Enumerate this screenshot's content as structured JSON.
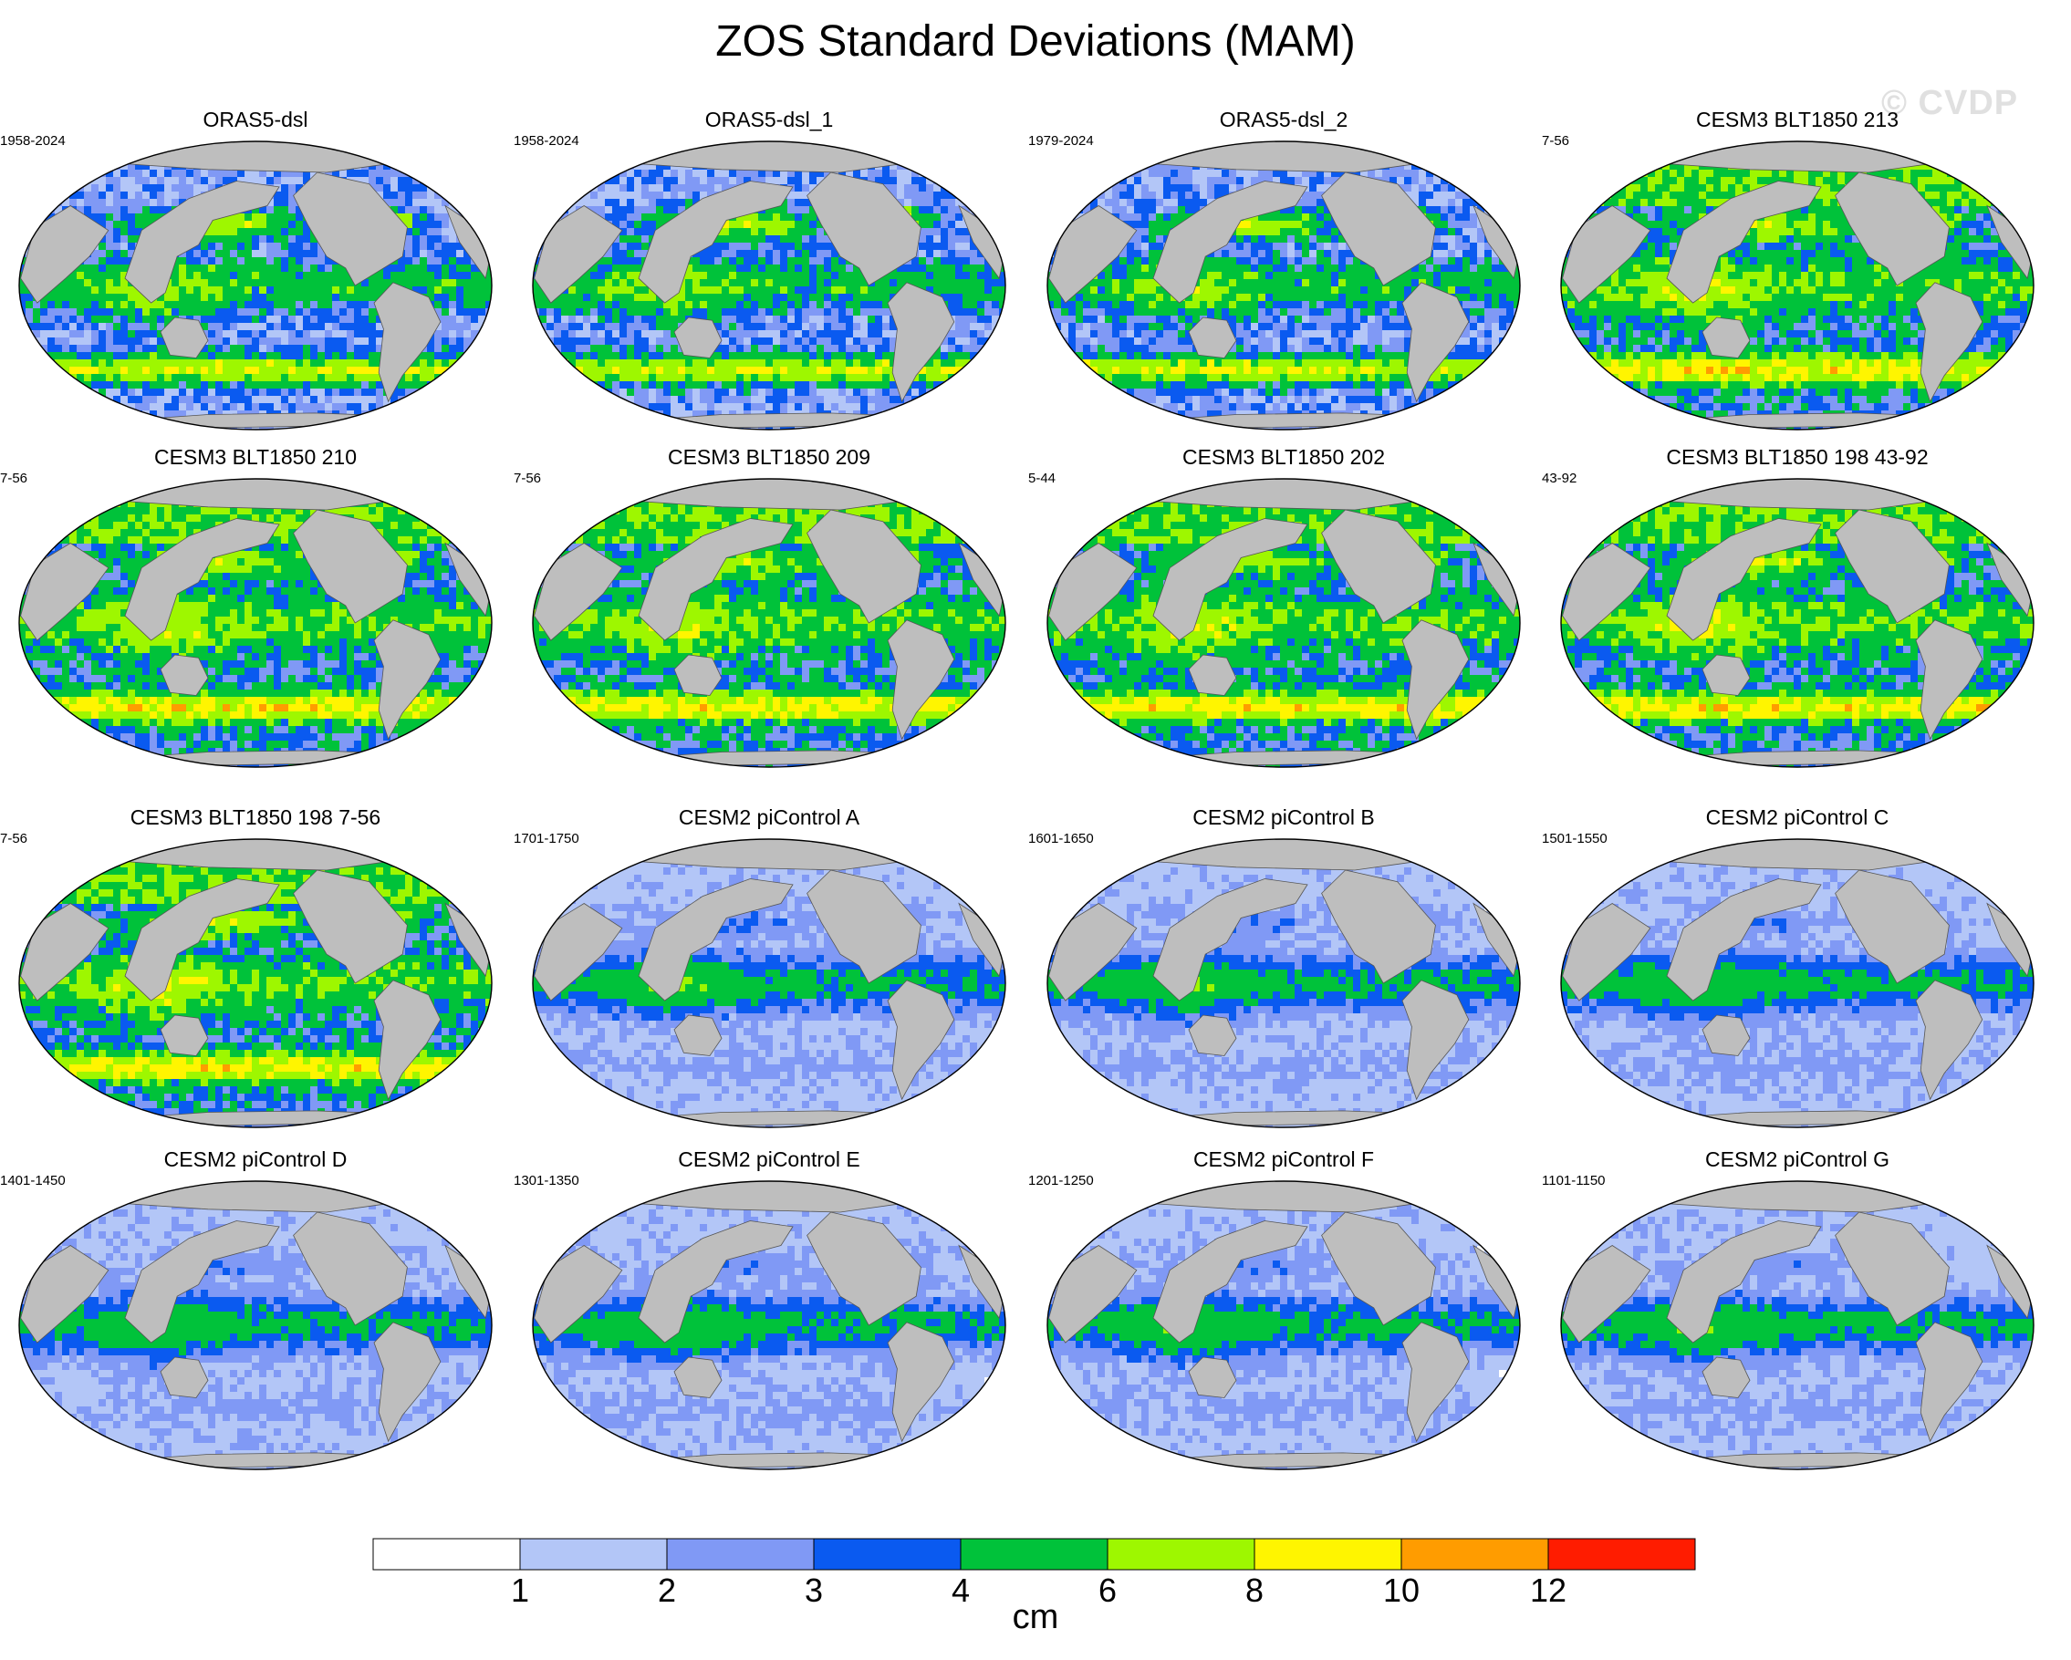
{
  "chart_data": {
    "type": "heatmap",
    "title": "ZOS Standard Deviations (MAM)",
    "watermark": "© CVDP",
    "colorbar": {
      "label": "cm",
      "tick_labels": [
        "1",
        "2",
        "3",
        "4",
        "6",
        "8",
        "10",
        "12"
      ],
      "levels": [
        0,
        1,
        2,
        3,
        4,
        6,
        8,
        10,
        12,
        14
      ],
      "colors": [
        "#ffffff",
        "#b3c6f7",
        "#8099f5",
        "#0a5af0",
        "#00c23a",
        "#9ef700",
        "#fff500",
        "#ff9c00",
        "#ff1c00"
      ]
    },
    "map_colors": {
      "land": "#bebebe",
      "coast": "#555555"
    },
    "panels": [
      {
        "title": "ORAS5-dsl",
        "period": "1958-2024",
        "regime": "obs"
      },
      {
        "title": "ORAS5-dsl_1",
        "period": "1958-2024",
        "regime": "obs"
      },
      {
        "title": "ORAS5-dsl_2",
        "period": "1979-2024",
        "regime": "obs"
      },
      {
        "title": "CESM3 BLT1850 213",
        "period": "7-56",
        "regime": "cesm3"
      },
      {
        "title": "CESM3 BLT1850 210",
        "period": "7-56",
        "regime": "cesm3"
      },
      {
        "title": "CESM3 BLT1850 209",
        "period": "7-56",
        "regime": "cesm3"
      },
      {
        "title": "CESM3 BLT1850 202",
        "period": "5-44",
        "regime": "cesm3"
      },
      {
        "title": "CESM3 BLT1850 198 43-92",
        "period": "43-92",
        "regime": "cesm3"
      },
      {
        "title": "CESM3 BLT1850 198 7-56",
        "period": "7-56",
        "regime": "cesm3"
      },
      {
        "title": "CESM2 piControl A",
        "period": "1701-1750",
        "regime": "cesm2"
      },
      {
        "title": "CESM2 piControl B",
        "period": "1601-1650",
        "regime": "cesm2"
      },
      {
        "title": "CESM2 piControl C",
        "period": "1501-1550",
        "regime": "cesm2"
      },
      {
        "title": "CESM2 piControl D",
        "period": "1401-1450",
        "regime": "cesm2"
      },
      {
        "title": "CESM2 piControl E",
        "period": "1301-1350",
        "regime": "cesm2"
      },
      {
        "title": "CESM2 piControl F",
        "period": "1201-1250",
        "regime": "cesm2"
      },
      {
        "title": "CESM2 piControl G",
        "period": "1101-1150",
        "regime": "cesm2"
      }
    ]
  }
}
